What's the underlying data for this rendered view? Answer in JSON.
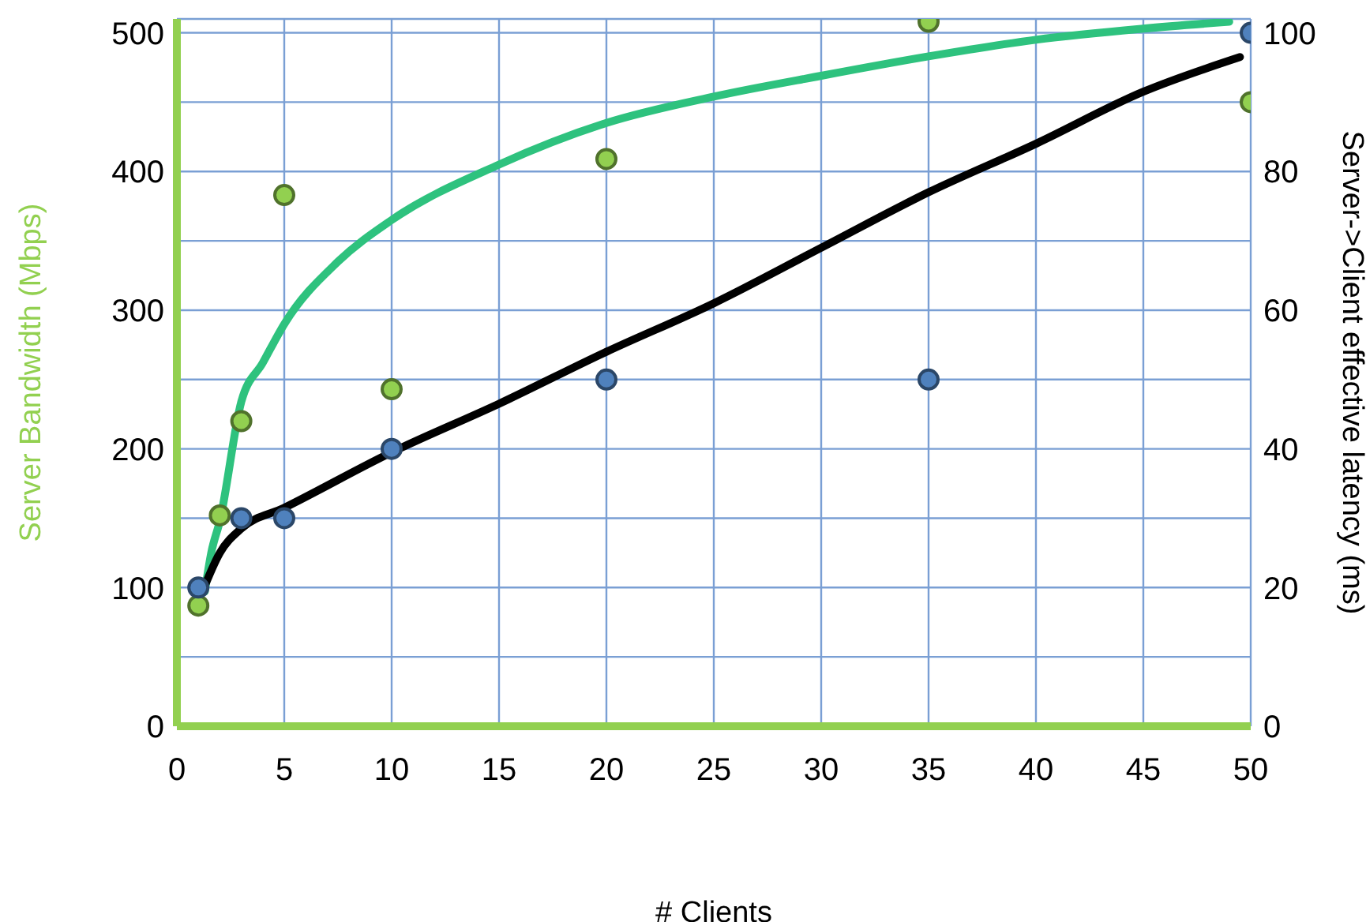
{
  "chart_data": {
    "type": "scatter",
    "xlabel": "# Clients",
    "ylabel": "Server Bandwidth (Mbps)",
    "y2label": "Server->Client effective latency (ms)",
    "xlim": [
      0,
      50
    ],
    "xticks": [
      0,
      5,
      10,
      15,
      20,
      25,
      30,
      35,
      40,
      45,
      50
    ],
    "ylim": [
      0,
      510
    ],
    "yticks": [
      0,
      {
        "value": 50,
        "label": null
      },
      100,
      {
        "value": 150,
        "label": null
      },
      200,
      {
        "value": 250,
        "label": null
      },
      300,
      {
        "value": 350,
        "label": null
      },
      400,
      {
        "value": 450,
        "label": null
      },
      500
    ],
    "y2lim": [
      0,
      102
    ],
    "y2ticks": [
      0,
      20,
      40,
      60,
      80,
      100
    ],
    "grid": true,
    "series": [
      {
        "type": "line",
        "axis": "y",
        "color": "#2ec27e",
        "marker": "none",
        "line_style": "solid",
        "x": [
          1.3,
          1.6,
          2,
          3,
          4,
          5,
          7.5,
          10,
          15,
          20,
          25,
          30,
          35,
          40,
          45,
          49
        ],
        "values": [
          97,
          125,
          148,
          234,
          262,
          290,
          335,
          365,
          405,
          435,
          454,
          469,
          483,
          495,
          503,
          508
        ]
      },
      {
        "type": "line",
        "axis": "y2",
        "color": "#000000",
        "marker": "none",
        "line_style": "solid",
        "x": [
          1.2,
          2,
          3,
          5,
          10,
          15,
          20,
          25,
          30,
          35,
          40,
          45,
          49.5
        ],
        "values": [
          19.5,
          25,
          28.5,
          31.5,
          39.5,
          46.5,
          54,
          61,
          69,
          77,
          84,
          91.5,
          96.5
        ]
      },
      {
        "axis": "y",
        "color": "#92d050",
        "marker": "circle",
        "x": [
          1,
          2,
          3,
          5,
          10,
          20,
          35,
          50
        ],
        "values": [
          87,
          152,
          220,
          383,
          243,
          409,
          508,
          450
        ]
      },
      {
        "axis": "y2",
        "color": "#4f81bd",
        "marker": "circle",
        "x": [
          1,
          3,
          5,
          10,
          20,
          35,
          50
        ],
        "values": [
          20,
          30,
          30,
          40,
          50,
          50,
          100
        ]
      }
    ]
  }
}
